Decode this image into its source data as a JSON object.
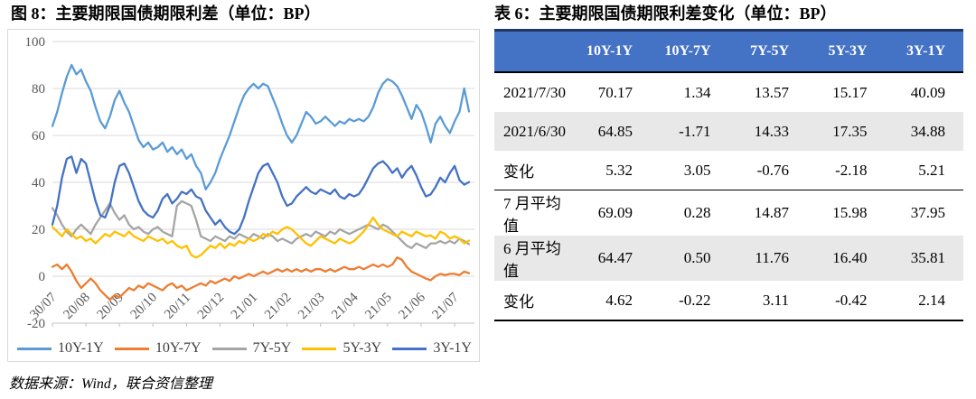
{
  "figure": {
    "title": "图 8：主要期限国债期限利差（单位：BP）",
    "source": "数据来源：Wind，联合资信整理"
  },
  "table_panel": {
    "title": "表 6：主要期限国债期限利差变化（单位：BP）",
    "columns": [
      "10Y-1Y",
      "10Y-7Y",
      "7Y-5Y",
      "5Y-3Y",
      "3Y-1Y"
    ],
    "rows": [
      {
        "label": "2021/7/30",
        "values": [
          "70.17",
          "1.34",
          "13.57",
          "15.17",
          "40.09"
        ],
        "shaded": false,
        "section_end": false
      },
      {
        "label": "2021/6/30",
        "values": [
          "64.85",
          "-1.71",
          "14.33",
          "17.35",
          "34.88"
        ],
        "shaded": true,
        "section_end": false
      },
      {
        "label": "变化",
        "values": [
          "5.32",
          "3.05",
          "-0.76",
          "-2.18",
          "5.21"
        ],
        "shaded": false,
        "section_end": true
      },
      {
        "label": "7 月平均值",
        "values": [
          "69.09",
          "0.28",
          "14.87",
          "15.98",
          "37.95"
        ],
        "shaded": false,
        "section_end": false
      },
      {
        "label": "6 月平均值",
        "values": [
          "64.47",
          "0.50",
          "11.76",
          "16.40",
          "35.81"
        ],
        "shaded": true,
        "section_end": false
      },
      {
        "label": "变化",
        "values": [
          "4.62",
          "-0.22",
          "3.11",
          "-0.42",
          "2.14"
        ],
        "shaded": false,
        "section_end": false
      }
    ]
  },
  "chart_data": {
    "type": "line",
    "title": "主要期限国债期限利差（单位：BP）",
    "xlabel": "",
    "ylabel": "",
    "ylim": [
      -20,
      100
    ],
    "y_ticks": [
      100,
      80,
      60,
      40,
      20,
      0,
      -20
    ],
    "x_tick_labels": [
      "30/07",
      "20/08",
      "20/09",
      "20/10",
      "20/11",
      "20/12",
      "21/01",
      "21/02",
      "21/03",
      "21/04",
      "21/05",
      "21/06",
      "21/07"
    ],
    "grid": "horizontal",
    "legend_position": "bottom",
    "points_per_tick": 7,
    "series": [
      {
        "name": "10Y-1Y",
        "color": "#5B9BD5",
        "values": [
          64,
          70,
          78,
          85,
          90,
          86,
          88,
          83,
          79,
          72,
          66,
          63,
          68,
          75,
          79,
          74,
          70,
          64,
          58,
          55,
          57,
          54,
          55,
          57,
          53,
          55,
          52,
          54,
          50,
          52,
          47,
          44,
          37,
          40,
          44,
          50,
          55,
          60,
          66,
          72,
          77,
          80,
          82,
          80,
          82,
          81,
          76,
          71,
          65,
          60,
          57,
          60,
          65,
          70,
          68,
          65,
          66,
          68,
          66,
          64,
          66,
          65,
          67,
          66,
          67,
          66,
          68,
          72,
          78,
          82,
          84,
          83,
          81,
          77,
          72,
          67,
          73,
          70,
          64,
          57,
          65,
          68,
          64,
          61,
          66,
          70,
          80,
          70.2
        ]
      },
      {
        "name": "10Y-7Y",
        "color": "#ED7D31",
        "values": [
          4,
          5,
          3,
          5,
          2,
          -2,
          -5,
          -3,
          -1,
          -3,
          -6,
          -8,
          -10,
          -8,
          -9,
          -7,
          -5,
          -6,
          -4,
          -5,
          -3,
          -4,
          -5,
          -6,
          -4,
          -3,
          -5,
          -4,
          -6,
          -5,
          -4,
          -3,
          -4,
          -2,
          -3,
          -2,
          -1,
          -2,
          0,
          -1,
          0,
          1,
          0,
          1,
          2,
          1,
          2,
          3,
          2,
          3,
          2,
          3,
          2,
          3,
          2,
          3,
          3,
          2,
          3,
          2,
          3,
          4,
          3,
          3,
          4,
          3,
          4,
          5,
          4,
          5,
          4,
          5,
          8,
          7,
          4,
          2,
          1,
          0,
          -1,
          -1.7,
          0,
          1,
          0.5,
          1,
          1,
          0.5,
          2,
          1.3
        ]
      },
      {
        "name": "7Y-5Y",
        "color": "#A5A5A5",
        "values": [
          29,
          26,
          22,
          19,
          17,
          20,
          22,
          20,
          18,
          22,
          25,
          28,
          31,
          27,
          24,
          26,
          22,
          20,
          21,
          19,
          18,
          20,
          21,
          19,
          18,
          17,
          30,
          32,
          31,
          30,
          24,
          17,
          16,
          15,
          17,
          16,
          15,
          17,
          16,
          18,
          17,
          16,
          18,
          17,
          16,
          18,
          17,
          15,
          16,
          15,
          14,
          16,
          17,
          18,
          17,
          19,
          18,
          17,
          19,
          18,
          20,
          19,
          18,
          19,
          20,
          21,
          22,
          21,
          20,
          22,
          21,
          19,
          17,
          15,
          13,
          12,
          14,
          13,
          12,
          14,
          14,
          15,
          14,
          15,
          14,
          16,
          15,
          13.6
        ]
      },
      {
        "name": "5Y-3Y",
        "color": "#FFC000",
        "values": [
          21,
          19,
          17,
          20,
          18,
          16,
          17,
          15,
          16,
          14,
          16,
          18,
          17,
          19,
          18,
          17,
          19,
          17,
          16,
          15,
          17,
          16,
          15,
          16,
          14,
          15,
          13,
          12,
          13,
          9,
          8,
          9,
          11,
          13,
          12,
          14,
          12,
          14,
          13,
          15,
          14,
          16,
          15,
          16,
          18,
          17,
          19,
          18,
          20,
          21,
          20,
          18,
          16,
          14,
          13,
          15,
          17,
          16,
          15,
          14,
          16,
          15,
          14,
          15,
          17,
          19,
          22,
          25,
          22,
          20,
          19,
          18,
          17,
          19,
          18,
          17,
          19,
          18,
          17,
          17.4,
          16,
          19,
          18,
          16,
          17,
          16,
          14,
          15.2
        ]
      },
      {
        "name": "3Y-1Y",
        "color": "#4472C4",
        "values": [
          22,
          30,
          42,
          50,
          51,
          44,
          50,
          48,
          40,
          32,
          26,
          25,
          30,
          40,
          47,
          48,
          44,
          38,
          32,
          28,
          26,
          25,
          28,
          33,
          35,
          31,
          33,
          36,
          35,
          37,
          34,
          33,
          28,
          25,
          22,
          24,
          21,
          19,
          18,
          20,
          25,
          32,
          38,
          44,
          47,
          48,
          44,
          40,
          34,
          30,
          31,
          34,
          36,
          38,
          36,
          35,
          37,
          36,
          35,
          37,
          34,
          33,
          35,
          34,
          35,
          38,
          42,
          46,
          48,
          49,
          47,
          44,
          46,
          42,
          45,
          47,
          43,
          38,
          34,
          34.9,
          38,
          42,
          40,
          44,
          47,
          41,
          39,
          40.1
        ]
      }
    ]
  },
  "colors": {
    "header_bg": "#4472C4",
    "header_top_border": "#1F3864",
    "row_shaded": "#E8E8E8",
    "gridline": "#D9D9D9",
    "axis_line": "#BFBFBF",
    "axis_text": "#595959"
  }
}
